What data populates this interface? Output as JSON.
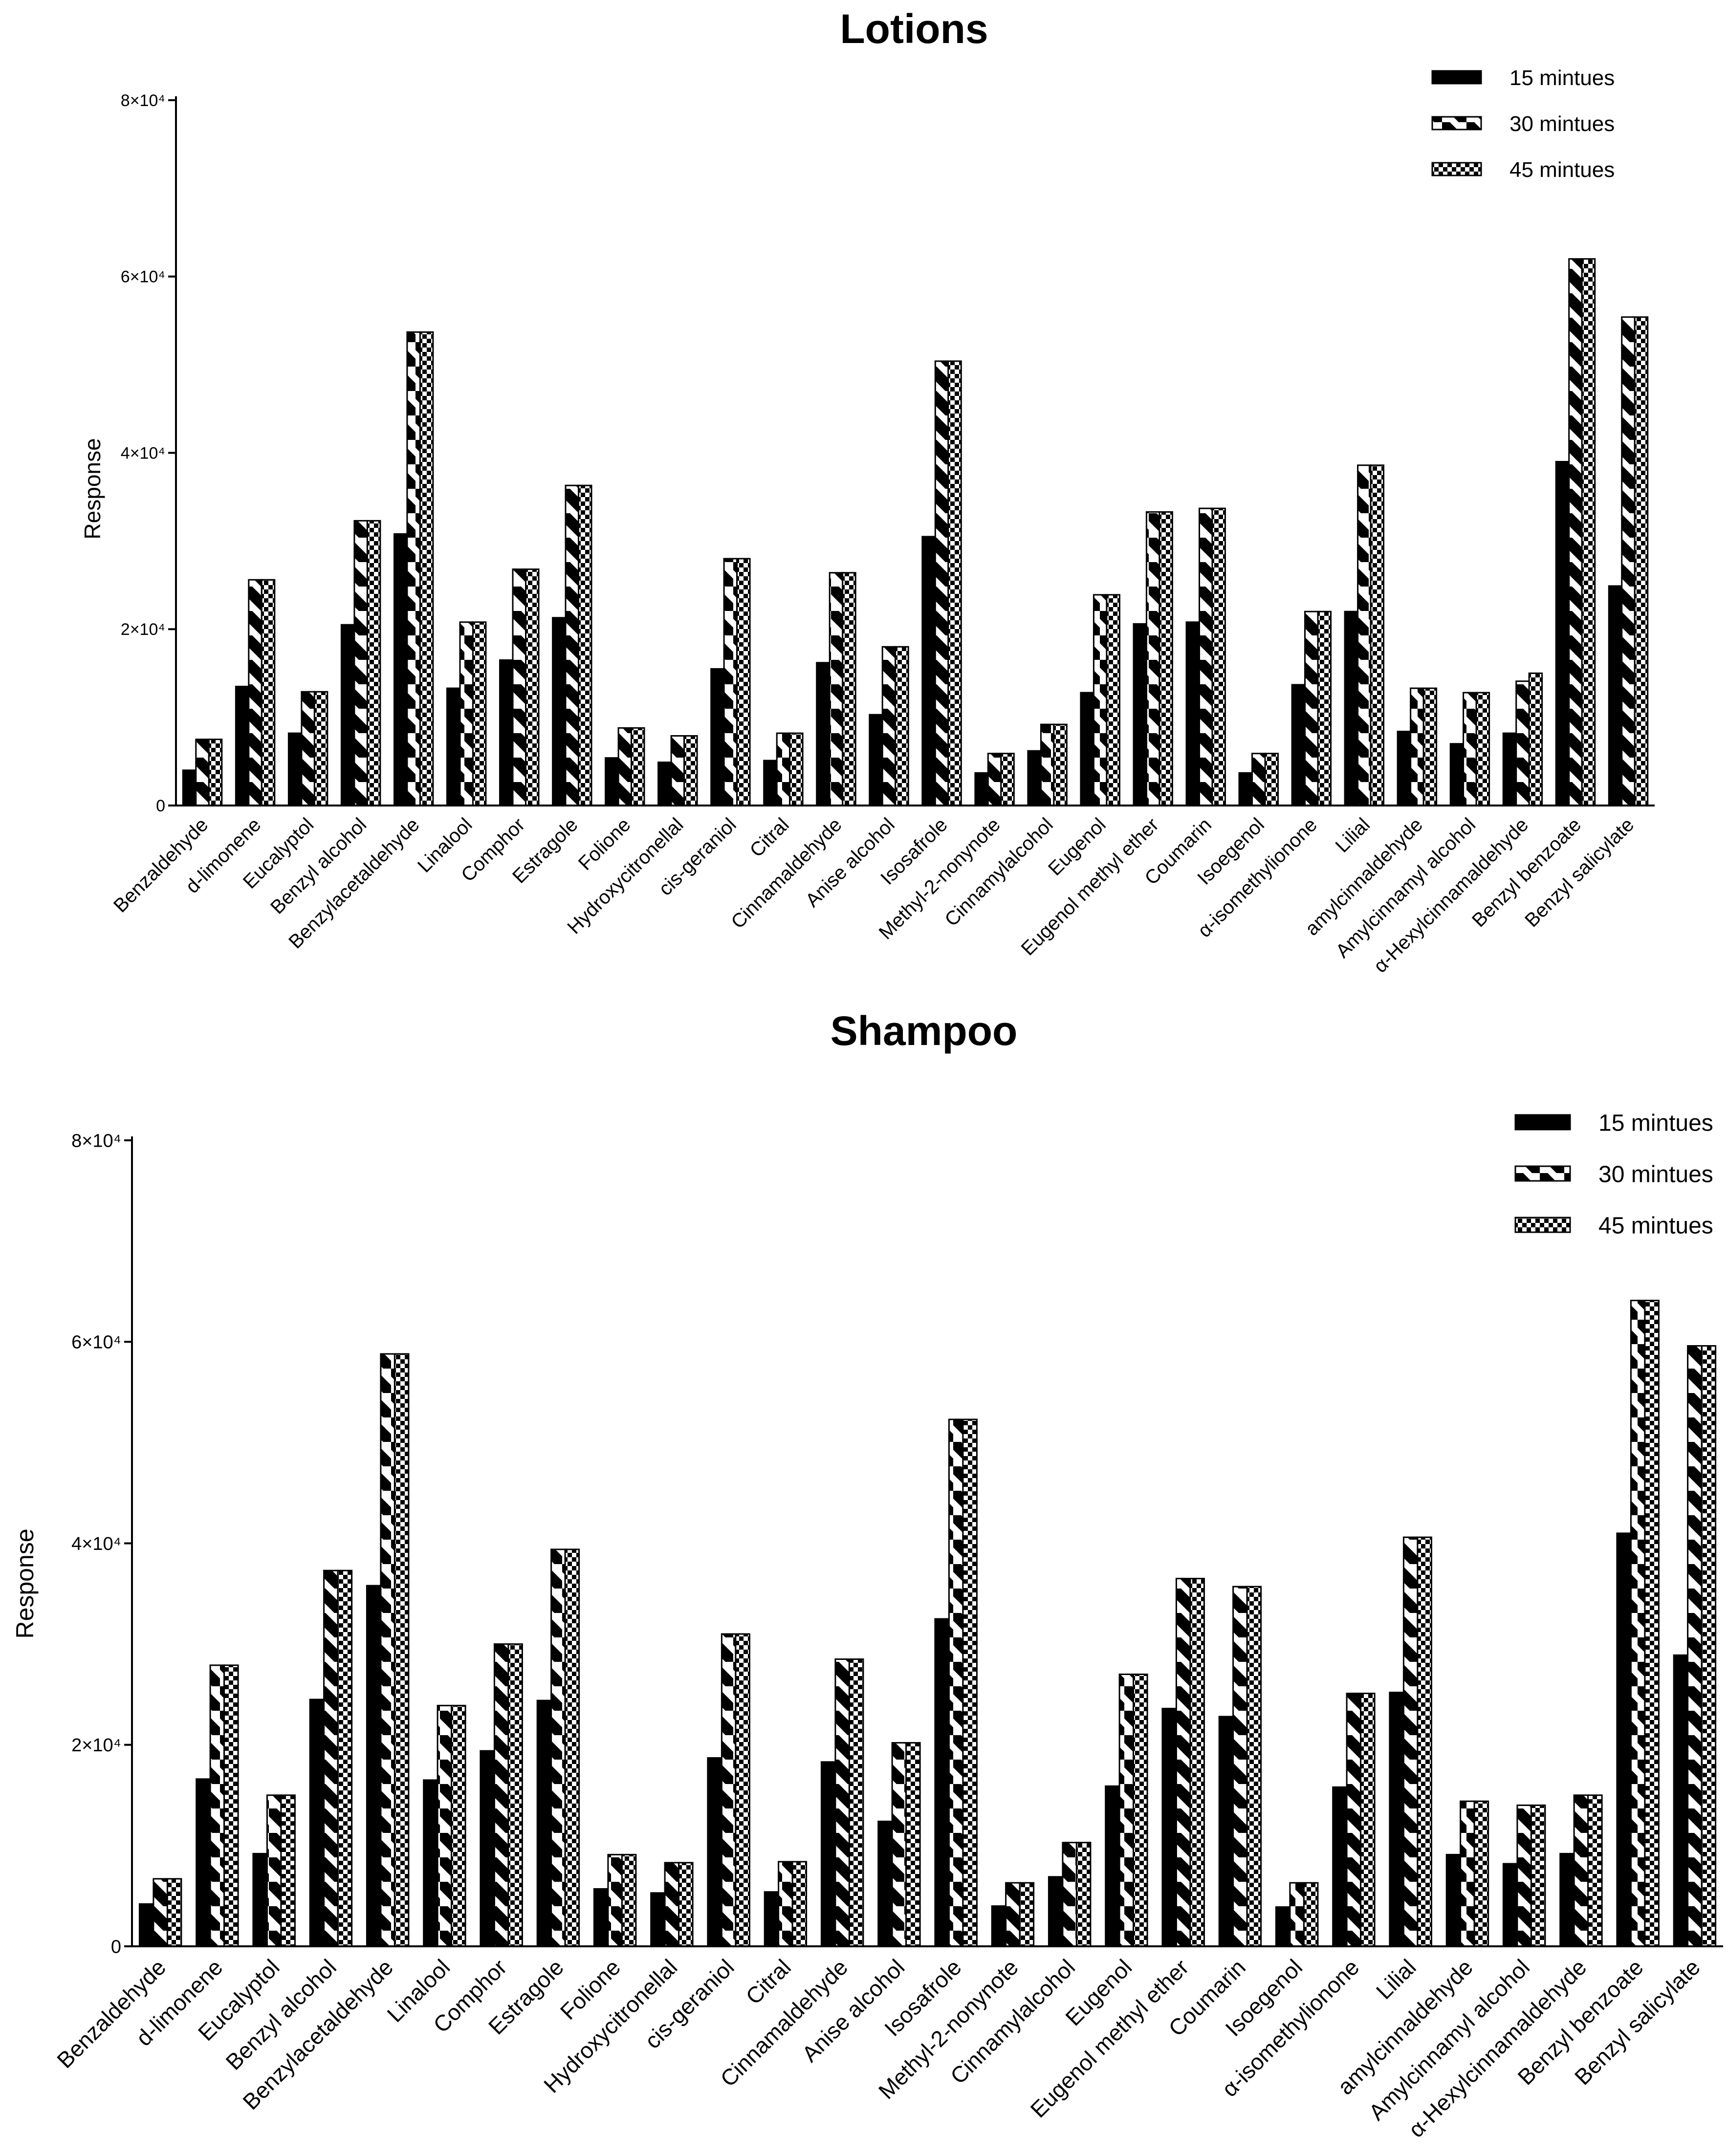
{
  "chart_data": [
    {
      "type": "bar",
      "title": "Lotions",
      "xlabel": "",
      "ylabel": "Response",
      "ylim": [
        0,
        80000
      ],
      "yticks": [
        0,
        20000,
        40000,
        60000,
        80000
      ],
      "ytick_labels": [
        "0",
        "2×10⁴",
        "4×10⁴",
        "6×10⁴",
        "8×10⁴"
      ],
      "legend_position": "top-right",
      "categories": [
        "Benzaldehyde",
        "d-limonene",
        "Eucalyptol",
        "Benzyl alcohol",
        "Benzylacetaldehyde",
        "Linalool",
        "Comphor",
        "Estragole",
        "Folione",
        "Hydroxycitronellal",
        "cis-geraniol",
        "Citral",
        "Cinnamaldehyde",
        "Anise alcohol",
        "Isosafrole",
        "Methyl-2-nonynote",
        "Cinnamylalcohol",
        "Eugenol",
        "Eugenol methyl ether",
        "Coumarin",
        "Isoegenol",
        "α-isomethylionone",
        "Lilial",
        "amylcinnaldehyde",
        "Amylcinnamyl alcohol",
        "α-Hexylcinnamaldehyde",
        "Benzyl benzoate",
        "Benzyl salicylate"
      ],
      "series": [
        {
          "name": "15 mintues",
          "pattern": "solid",
          "values": [
            4000,
            13500,
            8200,
            20500,
            30800,
            13300,
            16500,
            21300,
            5400,
            4900,
            15500,
            5100,
            16200,
            10300,
            30500,
            3700,
            6200,
            12800,
            20600,
            20800,
            3700,
            13700,
            22000,
            8400,
            7000,
            8200,
            39000,
            24900
          ]
        },
        {
          "name": "30 mintues",
          "pattern": "diagonal",
          "values": [
            7500,
            25600,
            12900,
            32300,
            53700,
            20800,
            26800,
            36300,
            8800,
            7900,
            28000,
            8200,
            26400,
            18000,
            50400,
            5900,
            9200,
            23900,
            33300,
            33700,
            5900,
            22000,
            38600,
            13300,
            12800,
            14100,
            62000,
            55400
          ]
        },
        {
          "name": "45 mintues",
          "pattern": "checker",
          "values": [
            7500,
            25600,
            12900,
            32300,
            53700,
            20800,
            26800,
            36300,
            8800,
            7900,
            28000,
            8200,
            26400,
            18000,
            50400,
            5900,
            9200,
            23900,
            33300,
            33700,
            5900,
            22000,
            38600,
            13300,
            12800,
            15000,
            62000,
            55400
          ]
        }
      ]
    },
    {
      "type": "bar",
      "title": "Shampoo",
      "xlabel": "",
      "ylabel": "Response",
      "ylim": [
        0,
        80000
      ],
      "yticks": [
        0,
        20000,
        40000,
        60000,
        80000
      ],
      "ytick_labels": [
        "0",
        "2×10⁴",
        "4×10⁴",
        "6×10⁴",
        "8×10⁴"
      ],
      "legend_position": "top-right",
      "categories": [
        "Benzaldehyde",
        "d-limonene",
        "Eucalyptol",
        "Benzyl alcohol",
        "Benzylacetaldehyde",
        "Linalool",
        "Comphor",
        "Estragole",
        "Folione",
        "Hydroxycitronellal",
        "cis-geraniol",
        "Citral",
        "Cinnamaldehyde",
        "Anise alcohol",
        "Isosafrole",
        "Methyl-2-nonynote",
        "Cinnamylalcohol",
        "Eugenol",
        "Eugenol methyl ether",
        "Coumarin",
        "Isoegenol",
        "α-isomethylionone",
        "Lilial",
        "amylcinnaldehyde",
        "Amylcinnamyl alcohol",
        "α-Hexylcinnamaldehyde",
        "Benzyl benzoate",
        "Benzyl salicylate"
      ],
      "series": [
        {
          "name": "15 mintues",
          "pattern": "solid",
          "values": [
            4200,
            16600,
            9200,
            24500,
            35800,
            16500,
            19400,
            24400,
            5700,
            5300,
            18700,
            5400,
            18300,
            12400,
            32500,
            4000,
            6900,
            15900,
            23600,
            22800,
            3900,
            15800,
            25200,
            9100,
            8200,
            9200,
            41000,
            28900
          ]
        },
        {
          "name": "30 mintues",
          "pattern": "diagonal",
          "values": [
            6700,
            27900,
            15000,
            37300,
            58800,
            23900,
            30000,
            39400,
            9100,
            8300,
            31000,
            8400,
            28500,
            20200,
            52300,
            6300,
            10300,
            27000,
            36500,
            35700,
            6300,
            25100,
            40600,
            14400,
            14000,
            15000,
            64100,
            59600
          ]
        },
        {
          "name": "45 mintues",
          "pattern": "checker",
          "values": [
            6700,
            27900,
            15000,
            37300,
            58800,
            23900,
            30000,
            39400,
            9100,
            8300,
            31000,
            8400,
            28500,
            20200,
            52300,
            6300,
            10300,
            27000,
            36500,
            35700,
            6300,
            25100,
            40600,
            14400,
            14000,
            15000,
            64100,
            59600
          ]
        }
      ]
    }
  ]
}
